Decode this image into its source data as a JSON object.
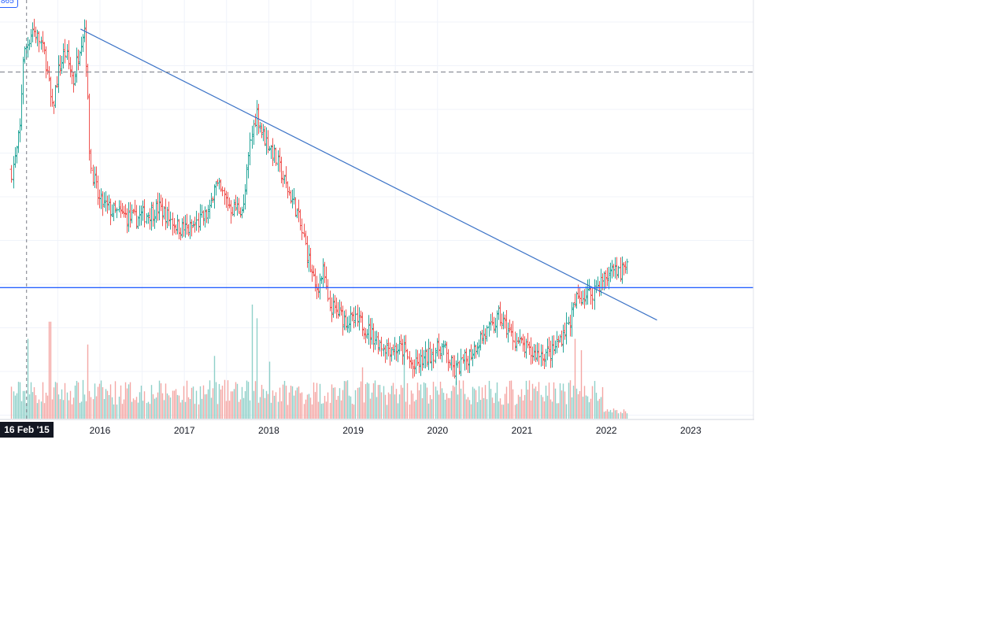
{
  "chart_data": {
    "type": "ohlc",
    "timeframe": "weekly",
    "x_tick_labels": [
      "2016",
      "2017",
      "2018",
      "2019",
      "2020",
      "2021",
      "2022",
      "2023"
    ],
    "crosshair_date_label": "16 Feb '15",
    "crosshair_price_label": "865",
    "colors": {
      "up": "#26a69a",
      "down": "#ef5350",
      "trendline": "#3d74c7",
      "hline": "#2962ff",
      "crosshair": "#787b86",
      "grid": "#f0f3fa"
    },
    "anchors": [
      [
        2014.95,
        0.58
      ],
      [
        2015.0,
        0.62
      ],
      [
        2015.05,
        0.7
      ],
      [
        2015.08,
        0.88
      ],
      [
        2015.12,
        0.91
      ],
      [
        2015.2,
        0.96
      ],
      [
        2015.28,
        0.93
      ],
      [
        2015.35,
        0.88
      ],
      [
        2015.43,
        0.74
      ],
      [
        2015.5,
        0.84
      ],
      [
        2015.58,
        0.9
      ],
      [
        2015.68,
        0.82
      ],
      [
        2015.76,
        0.92
      ],
      [
        2015.82,
        0.97
      ],
      [
        2015.88,
        0.6
      ],
      [
        2015.98,
        0.5
      ],
      [
        2016.15,
        0.47
      ],
      [
        2016.4,
        0.45
      ],
      [
        2016.7,
        0.48
      ],
      [
        2016.92,
        0.43
      ],
      [
        2017.05,
        0.42
      ],
      [
        2017.3,
        0.47
      ],
      [
        2017.35,
        0.55
      ],
      [
        2017.55,
        0.48
      ],
      [
        2017.7,
        0.48
      ],
      [
        2017.78,
        0.66
      ],
      [
        2017.85,
        0.74
      ],
      [
        2017.92,
        0.68
      ],
      [
        2018.05,
        0.63
      ],
      [
        2018.18,
        0.55
      ],
      [
        2018.32,
        0.48
      ],
      [
        2018.45,
        0.36
      ],
      [
        2018.55,
        0.26
      ],
      [
        2018.65,
        0.31
      ],
      [
        2018.7,
        0.22
      ],
      [
        2018.92,
        0.18
      ],
      [
        2019.1,
        0.17
      ],
      [
        2019.35,
        0.11
      ],
      [
        2019.6,
        0.1
      ],
      [
        2019.7,
        0.05
      ],
      [
        2019.92,
        0.09
      ],
      [
        2020.05,
        0.11
      ],
      [
        2020.2,
        0.04
      ],
      [
        2020.35,
        0.08
      ],
      [
        2020.5,
        0.13
      ],
      [
        2020.65,
        0.16
      ],
      [
        2020.72,
        0.19
      ],
      [
        2020.9,
        0.13
      ],
      [
        2021.1,
        0.09
      ],
      [
        2021.35,
        0.09
      ],
      [
        2021.55,
        0.17
      ],
      [
        2021.65,
        0.24
      ],
      [
        2021.8,
        0.25
      ],
      [
        2021.92,
        0.28
      ],
      [
        2022.05,
        0.31
      ],
      [
        2022.15,
        0.3
      ],
      [
        2022.25,
        0.33
      ]
    ],
    "volume_spikes": [
      [
        2015.14,
        0.7
      ],
      [
        2015.4,
        0.85
      ],
      [
        2015.86,
        0.65
      ],
      [
        2017.35,
        0.55
      ],
      [
        2017.8,
        1.0
      ],
      [
        2017.86,
        0.88
      ],
      [
        2018.0,
        0.5
      ],
      [
        2019.1,
        0.45
      ],
      [
        2019.6,
        0.55
      ],
      [
        2019.8,
        0.3
      ],
      [
        2021.62,
        0.7
      ],
      [
        2021.7,
        0.6
      ]
    ],
    "trendline": {
      "x": [
        2015.77,
        2022.6
      ],
      "y": [
        0.96,
        0.18
      ]
    },
    "horizontal_level": 0.267,
    "dashed_level": 0.845,
    "crosshair_x": 2015.13,
    "value_scale": "normalized (price axis not shown)"
  }
}
